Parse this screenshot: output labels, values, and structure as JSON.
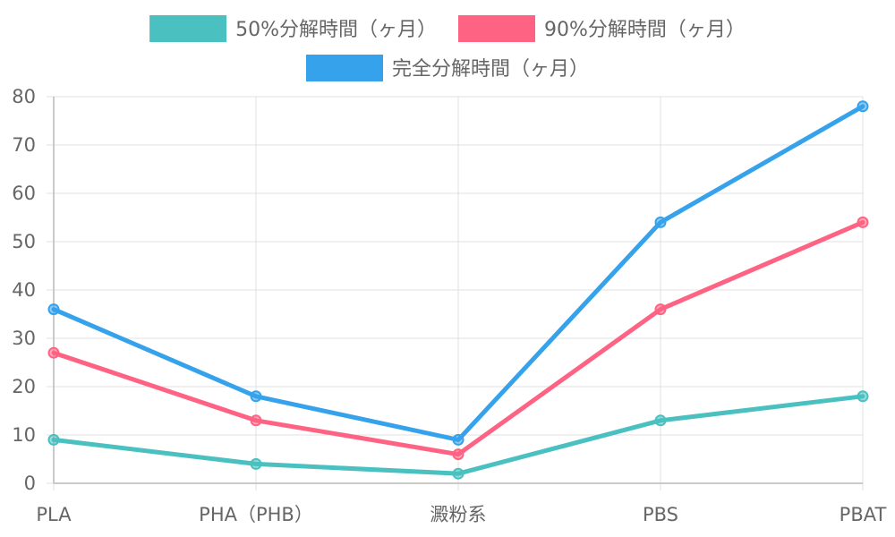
{
  "chart_data": {
    "type": "line",
    "title": "",
    "xlabel": "",
    "ylabel": "",
    "categories": [
      "PLA",
      "PHA（PHB）",
      "澱粉系",
      "PBS",
      "PBAT"
    ],
    "ylim": [
      0,
      80
    ],
    "yticks": [
      0,
      10,
      20,
      30,
      40,
      50,
      60,
      70,
      80
    ],
    "grid": true,
    "legend_position": "top",
    "series": [
      {
        "name": "50%分解時間（ヶ月）",
        "color": "#4bc0c0",
        "values": [
          9,
          4,
          2,
          13,
          18
        ]
      },
      {
        "name": "90%分解時間（ヶ月）",
        "color": "#ff6384",
        "values": [
          27,
          13,
          6,
          36,
          54
        ]
      },
      {
        "name": "完全分解時間（ヶ月）",
        "color": "#36a2eb",
        "values": [
          36,
          18,
          9,
          54,
          78
        ]
      }
    ]
  }
}
